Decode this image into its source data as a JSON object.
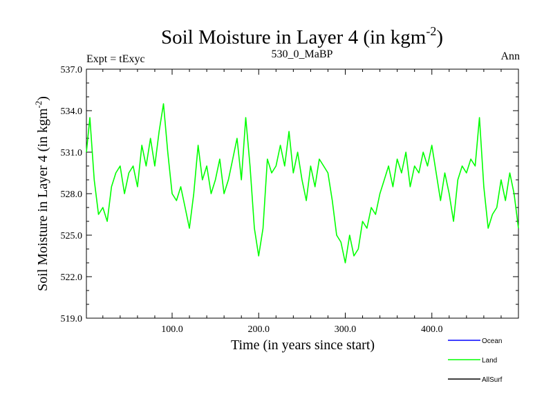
{
  "chart_data": {
    "type": "line",
    "title": "Soil Moisture in Layer 4 (in kgm",
    "title_sup": "-2",
    "title_end": ")",
    "subtitle_left": "Expt = tExyc",
    "subtitle_center": "530_0_MaBP",
    "subtitle_right": "Ann",
    "xlabel": "Time (in years since start)",
    "ylabel": "Soil Moisture in Layer 4 (in kgm",
    "ylabel_sup": "-2",
    "ylabel_end": ")",
    "xlim": [
      1,
      500
    ],
    "ylim": [
      519.0,
      537.0
    ],
    "x_ticks": [
      100.0,
      200.0,
      300.0,
      400.0
    ],
    "x_tick_labels": [
      "100.0",
      "200.0",
      "300.0",
      "400.0"
    ],
    "y_ticks": [
      519.0,
      522.0,
      525.0,
      528.0,
      531.0,
      534.0,
      537.0
    ],
    "y_tick_labels": [
      "519.0",
      "522.0",
      "525.0",
      "528.0",
      "531.0",
      "534.0",
      "537.0"
    ],
    "grid": false,
    "legend_position": "bottom-right",
    "series": [
      {
        "name": "Ocean",
        "color": "#0000ff",
        "x": [],
        "y": []
      },
      {
        "name": "Land",
        "color": "#00ff00",
        "x": [
          1,
          5,
          10,
          15,
          20,
          25,
          30,
          35,
          40,
          45,
          50,
          55,
          60,
          65,
          70,
          75,
          80,
          85,
          90,
          95,
          100,
          105,
          110,
          115,
          120,
          125,
          130,
          135,
          140,
          145,
          150,
          155,
          160,
          165,
          170,
          175,
          180,
          185,
          190,
          195,
          200,
          205,
          210,
          215,
          220,
          225,
          230,
          235,
          240,
          245,
          250,
          255,
          260,
          265,
          270,
          275,
          280,
          285,
          290,
          295,
          300,
          305,
          310,
          315,
          320,
          325,
          330,
          335,
          340,
          345,
          350,
          355,
          360,
          365,
          370,
          375,
          380,
          385,
          390,
          395,
          400,
          405,
          410,
          415,
          420,
          425,
          430,
          435,
          440,
          445,
          450,
          455,
          460,
          465,
          470,
          475,
          480,
          485,
          490,
          495,
          500
        ],
        "y": [
          531.0,
          533.5,
          529.0,
          526.5,
          527.0,
          526.0,
          528.5,
          529.5,
          530.0,
          528.0,
          529.5,
          530.0,
          528.5,
          531.5,
          530.0,
          532.0,
          530.0,
          532.5,
          534.5,
          531.0,
          528.0,
          527.5,
          528.5,
          527.0,
          525.5,
          528.0,
          531.5,
          529.0,
          530.0,
          528.0,
          529.0,
          530.5,
          528.0,
          529.0,
          530.5,
          532.0,
          529.0,
          533.5,
          530.0,
          525.5,
          523.5,
          525.5,
          530.5,
          529.5,
          530.0,
          531.5,
          530.0,
          532.5,
          529.5,
          531.0,
          529.0,
          527.5,
          530.0,
          528.5,
          530.5,
          530.0,
          529.5,
          527.5,
          525.0,
          524.5,
          523.0,
          525.0,
          523.5,
          524.0,
          526.0,
          525.5,
          527.0,
          526.5,
          528.0,
          529.0,
          530.0,
          528.5,
          530.5,
          529.5,
          531.0,
          528.5,
          530.0,
          529.5,
          531.0,
          530.0,
          531.5,
          529.5,
          527.5,
          529.5,
          528.0,
          526.0,
          529.0,
          530.0,
          529.5,
          530.5,
          530.0,
          533.5,
          528.5,
          525.5,
          526.5,
          527.0,
          529.0,
          527.5,
          529.5,
          528.0,
          525.5
        ]
      },
      {
        "name": "AllSurf",
        "color": "#000000",
        "x": [],
        "y": []
      }
    ]
  }
}
